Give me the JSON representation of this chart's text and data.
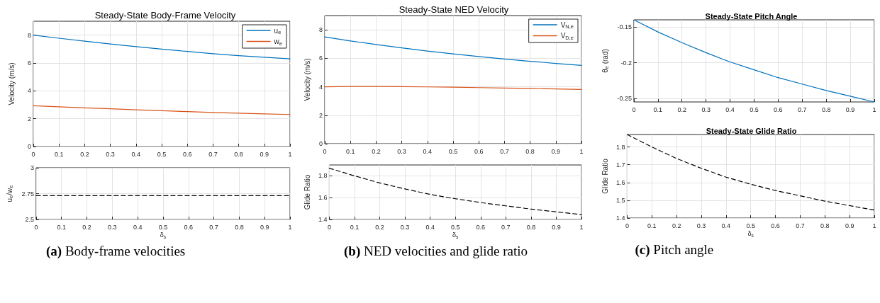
{
  "chart_data": [
    {
      "type": "line",
      "title": "Steady-State Body-Frame Velocity",
      "ylabel": "Velocity (m/s)",
      "x": [
        0,
        0.1,
        0.2,
        0.3,
        0.4,
        0.5,
        0.6,
        0.7,
        0.8,
        0.9,
        1
      ],
      "series": [
        {
          "name": "u$_{e}$",
          "color": "#0072bd",
          "values": [
            8.0,
            7.78,
            7.57,
            7.37,
            7.18,
            7.0,
            6.83,
            6.67,
            6.53,
            6.41,
            6.3
          ]
        },
        {
          "name": "w$_{e}$",
          "color": "#d95319",
          "values": [
            2.93,
            2.85,
            2.78,
            2.71,
            2.64,
            2.57,
            2.51,
            2.45,
            2.4,
            2.35,
            2.3
          ]
        }
      ],
      "xlim": [
        0,
        1
      ],
      "xticks": [
        0,
        0.1,
        0.2,
        0.3,
        0.4,
        0.5,
        0.6,
        0.7,
        0.8,
        0.9,
        1
      ],
      "ylim": [
        0,
        9
      ],
      "yticks": [
        0,
        2,
        4,
        6,
        8
      ],
      "grid": true,
      "legend": "top right",
      "line_style": "solid"
    },
    {
      "type": "line",
      "xlabel": "δ$_{s}$",
      "ylabel": "u$_{e}$/w$_{e}$",
      "x": [
        0,
        0.1,
        0.2,
        0.3,
        0.4,
        0.5,
        0.6,
        0.7,
        0.8,
        0.9,
        1
      ],
      "series": [
        {
          "color": "#000000",
          "values": [
            2.73,
            2.73,
            2.73,
            2.73,
            2.73,
            2.73,
            2.73,
            2.73,
            2.73,
            2.73,
            2.73
          ]
        }
      ],
      "xlim": [
        0,
        1
      ],
      "xticks": [
        0,
        0.1,
        0.2,
        0.3,
        0.4,
        0.5,
        0.6,
        0.7,
        0.8,
        0.9,
        1
      ],
      "ylim": [
        2.5,
        3
      ],
      "yticks": [
        2.5,
        2.75,
        3
      ],
      "grid": true,
      "line_style": "dashed",
      "annotations": [
        "(a) Body-frame velocities"
      ]
    },
    {
      "type": "line",
      "title": "Steady-State NED Velocity",
      "ylabel": "Velocity (m/s)",
      "x": [
        0,
        0.1,
        0.2,
        0.3,
        0.4,
        0.5,
        0.6,
        0.7,
        0.8,
        0.9,
        1
      ],
      "series": [
        {
          "name": "V$_{N,e}$",
          "color": "#0072bd",
          "values": [
            7.5,
            7.22,
            6.97,
            6.73,
            6.51,
            6.31,
            6.12,
            5.95,
            5.79,
            5.64,
            5.5
          ]
        },
        {
          "name": "V$_{D,e}$",
          "color": "#d95319",
          "values": [
            4.0,
            4.02,
            4.02,
            4.01,
            3.99,
            3.97,
            3.94,
            3.91,
            3.88,
            3.85,
            3.81
          ]
        }
      ],
      "xlim": [
        0,
        1
      ],
      "xticks": [
        0,
        0.1,
        0.2,
        0.3,
        0.4,
        0.5,
        0.6,
        0.7,
        0.8,
        0.9,
        1
      ],
      "ylim": [
        0,
        9
      ],
      "yticks": [
        0,
        2,
        4,
        6,
        8
      ],
      "grid": true,
      "legend": "top right",
      "line_style": "solid"
    },
    {
      "type": "line",
      "xlabel": "δ$_{s}$",
      "ylabel": "Glide Ratio",
      "x": [
        0,
        0.1,
        0.2,
        0.3,
        0.4,
        0.5,
        0.6,
        0.7,
        0.8,
        0.9,
        1
      ],
      "series": [
        {
          "color": "#000000",
          "values": [
            1.87,
            1.8,
            1.735,
            1.68,
            1.63,
            1.59,
            1.555,
            1.525,
            1.495,
            1.47,
            1.445
          ]
        }
      ],
      "xlim": [
        0,
        1
      ],
      "xticks": [
        0,
        0.1,
        0.2,
        0.3,
        0.4,
        0.5,
        0.6,
        0.7,
        0.8,
        0.9,
        1
      ],
      "ylim": [
        1.4,
        1.9
      ],
      "yticks": [
        1.4,
        1.6,
        1.8
      ],
      "grid": true,
      "line_style": "dashed",
      "annotations": [
        "(b) NED velocities and glide ratio"
      ]
    },
    {
      "type": "line",
      "title": "Steady-State Pitch Angle",
      "ylabel": "θ$_{e}$ (rad)",
      "x": [
        0,
        0.1,
        0.2,
        0.3,
        0.4,
        0.5,
        0.6,
        0.7,
        0.8,
        0.9,
        1
      ],
      "series": [
        {
          "color": "#0072bd",
          "values": [
            -0.14,
            -0.157,
            -0.172,
            -0.186,
            -0.199,
            -0.21,
            -0.221,
            -0.23,
            -0.239,
            -0.247,
            -0.255
          ]
        }
      ],
      "xlim": [
        0,
        1
      ],
      "xticks": [
        0,
        0.1,
        0.2,
        0.3,
        0.4,
        0.5,
        0.6,
        0.7,
        0.8,
        0.9,
        1
      ],
      "ylim": [
        -0.255,
        -0.14
      ],
      "yticks": [
        -0.25,
        -0.2,
        -0.15
      ],
      "grid": true,
      "line_style": "solid"
    },
    {
      "type": "line",
      "title": "Steady-State Glide Ratio",
      "xlabel": "δ$_{s}$",
      "ylabel": "Glide Ratio",
      "x": [
        0,
        0.1,
        0.2,
        0.3,
        0.4,
        0.5,
        0.6,
        0.7,
        0.8,
        0.9,
        1
      ],
      "series": [
        {
          "color": "#000000",
          "values": [
            1.87,
            1.8,
            1.735,
            1.68,
            1.63,
            1.59,
            1.555,
            1.525,
            1.495,
            1.47,
            1.445
          ]
        }
      ],
      "xlim": [
        0,
        1
      ],
      "xticks": [
        0,
        0.1,
        0.2,
        0.3,
        0.4,
        0.5,
        0.6,
        0.7,
        0.8,
        0.9,
        1
      ],
      "ylim": [
        1.4,
        1.87
      ],
      "yticks": [
        1.4,
        1.5,
        1.6,
        1.7,
        1.8
      ],
      "grid": true,
      "line_style": "dashed",
      "annotations": [
        "(c) Pitch angle"
      ]
    }
  ]
}
